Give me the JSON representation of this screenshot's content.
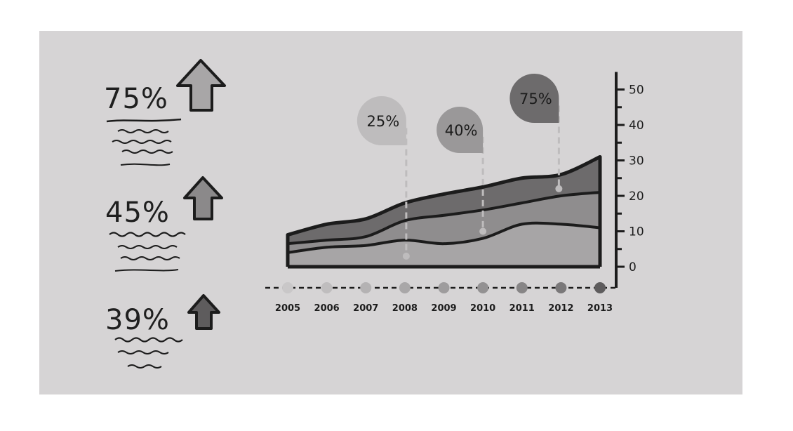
{
  "stats": [
    {
      "value": "75%",
      "arrow_color": "#a8a6a7"
    },
    {
      "value": "45%",
      "arrow_color": "#8b898a"
    },
    {
      "value": "39%",
      "arrow_color": "#5e5c5d"
    }
  ],
  "chart_data": {
    "type": "area",
    "stacked": true,
    "x": [
      "2005",
      "2006",
      "2007",
      "2008",
      "2009",
      "2010",
      "2011",
      "2012",
      "2013"
    ],
    "series": [
      {
        "values": [
          4,
          5.5,
          6,
          7.5,
          6.5,
          8,
          12,
          12,
          11
        ],
        "color": "#a7a5a6"
      },
      {
        "values": [
          2.5,
          2,
          2.5,
          5.5,
          8,
          8,
          6,
          8,
          10
        ],
        "color": "#8f8d8e"
      },
      {
        "values": [
          2.5,
          4.5,
          5,
          5,
          6,
          6.5,
          7,
          6,
          10
        ],
        "color": "#6d6b6c"
      }
    ],
    "ylim": [
      0,
      50
    ],
    "yticks": [
      "0",
      "10",
      "20",
      "30",
      "40",
      "50"
    ],
    "callouts": [
      {
        "label": "25%",
        "year": "2008",
        "value": 3,
        "color": "#bebcbd"
      },
      {
        "label": "40%",
        "year": "2010",
        "value": 10,
        "color": "#9a9899"
      },
      {
        "label": "75%",
        "year": "2012",
        "value": 22,
        "color": "#6d6b6c"
      }
    ],
    "timeline_colors": [
      "#c9c7c8",
      "#bfbdbe",
      "#b4b2b3",
      "#a9a7a8",
      "#9e9c9d",
      "#939192",
      "#878586",
      "#7a7879",
      "#5e5c5d"
    ],
    "grid": false
  }
}
